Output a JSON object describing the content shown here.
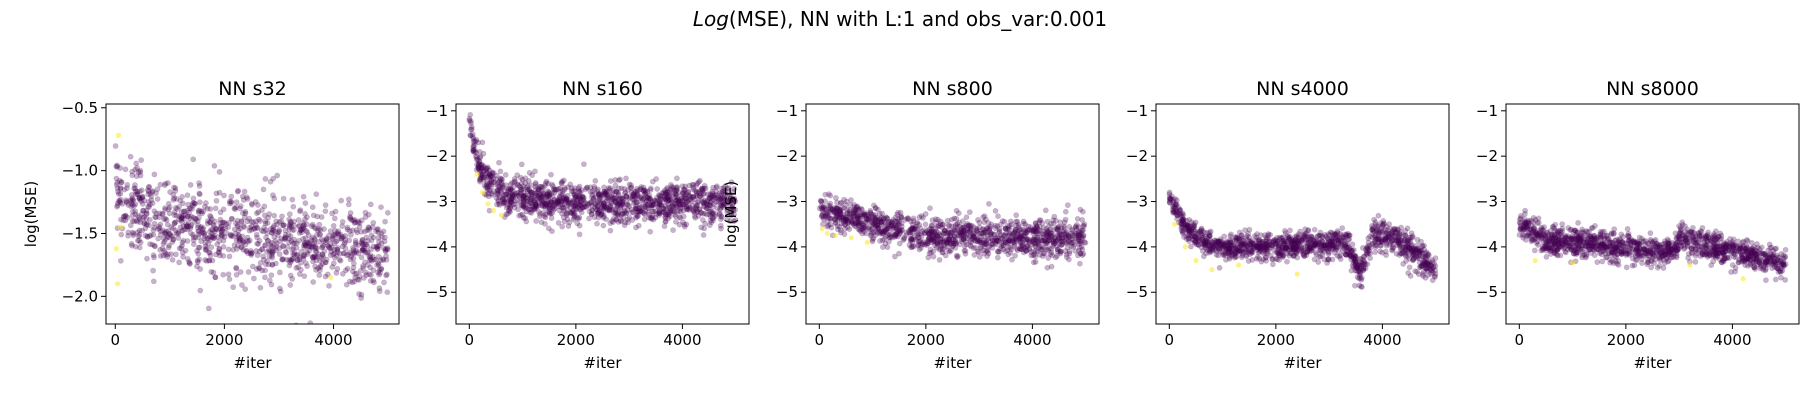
{
  "figure": {
    "title_prefix": "Log",
    "title_math": "(MSE)",
    "title_rest": ", NN with L:1 and obs_var:0.001"
  },
  "colors": {
    "point_main": "#440154",
    "point_highlight": "#fde725",
    "axes": "#000000",
    "background": "#ffffff"
  },
  "chart_data": [
    {
      "type": "scatter",
      "title": "NN s32",
      "xlabel": "#iter",
      "ylabel": "log(MSE)",
      "xlim": [
        -170,
        5200
      ],
      "ylim": [
        -2.22,
        -0.47
      ],
      "xticks": [
        0,
        2000,
        4000
      ],
      "xtick_labels": [
        "0",
        "2000",
        "4000"
      ],
      "yticks": [
        -2.0,
        -1.5,
        -1.0,
        -0.5
      ],
      "ytick_labels": [
        "−2.0",
        "−1.5",
        "−1.0",
        "−0.5"
      ],
      "series": [
        {
          "color": "#440154",
          "alpha": 0.3,
          "trend": [
            {
              "x": 0,
              "y": -1.1
            },
            {
              "x": 150,
              "y": -1.3
            },
            {
              "x": 1000,
              "y": -1.4
            },
            {
              "x": 3000,
              "y": -1.55
            },
            {
              "x": 5000,
              "y": -1.65
            }
          ],
          "spread": [
            {
              "x": 0,
              "y": 0.35
            },
            {
              "x": 5000,
              "y": 0.3
            }
          ],
          "count": 1100
        },
        {
          "color": "#fde725",
          "alpha": 0.55,
          "points": [
            {
              "x": 20,
              "y": -1.62
            },
            {
              "x": 40,
              "y": -1.9
            },
            {
              "x": 60,
              "y": -0.72
            },
            {
              "x": 100,
              "y": -1.45
            },
            {
              "x": 3950,
              "y": -1.85
            }
          ]
        }
      ]
    },
    {
      "type": "scatter",
      "title": "NN s160",
      "xlabel": "#iter",
      "ylabel": "",
      "xlim": [
        -250,
        5250
      ],
      "ylim": [
        -5.7,
        -0.85
      ],
      "xticks": [
        0,
        2000,
        4000
      ],
      "xtick_labels": [
        "0",
        "2000",
        "4000"
      ],
      "yticks": [
        -5,
        -4,
        -3,
        -2,
        -1
      ],
      "ytick_labels": [
        "−5",
        "−4",
        "−3",
        "−2",
        "−1"
      ],
      "series": [
        {
          "color": "#440154",
          "alpha": 0.3,
          "trend": [
            {
              "x": 0,
              "y": -1.2
            },
            {
              "x": 100,
              "y": -1.9
            },
            {
              "x": 300,
              "y": -2.5
            },
            {
              "x": 700,
              "y": -2.85
            },
            {
              "x": 1500,
              "y": -3.0
            },
            {
              "x": 3000,
              "y": -3.05
            },
            {
              "x": 5000,
              "y": -3.0
            }
          ],
          "spread": [
            {
              "x": 0,
              "y": 0.25
            },
            {
              "x": 400,
              "y": 0.45
            },
            {
              "x": 5000,
              "y": 0.45
            }
          ],
          "count": 1300
        },
        {
          "color": "#fde725",
          "alpha": 0.55,
          "points": [
            {
              "x": 150,
              "y": -2.4
            },
            {
              "x": 250,
              "y": -2.8
            },
            {
              "x": 350,
              "y": -3.05
            },
            {
              "x": 450,
              "y": -3.2
            },
            {
              "x": 600,
              "y": -3.3
            }
          ]
        }
      ]
    },
    {
      "type": "scatter",
      "title": "NN s800",
      "xlabel": "#iter",
      "ylabel": "log(MSE)",
      "xlim": [
        -250,
        5250
      ],
      "ylim": [
        -5.7,
        -0.85
      ],
      "xticks": [
        0,
        2000,
        4000
      ],
      "xtick_labels": [
        "0",
        "2000",
        "4000"
      ],
      "yticks": [
        -5,
        -4,
        -3,
        -2,
        -1
      ],
      "ytick_labels": [
        "−5",
        "−4",
        "−3",
        "−2",
        "−1"
      ],
      "series": [
        {
          "color": "#440154",
          "alpha": 0.3,
          "trend": [
            {
              "x": 0,
              "y": -3.2
            },
            {
              "x": 1000,
              "y": -3.5
            },
            {
              "x": 2000,
              "y": -3.75
            },
            {
              "x": 3000,
              "y": -3.8
            },
            {
              "x": 5000,
              "y": -3.8
            }
          ],
          "spread": [
            {
              "x": 0,
              "y": 0.35
            },
            {
              "x": 5000,
              "y": 0.45
            }
          ],
          "count": 1200
        },
        {
          "color": "#fde725",
          "alpha": 0.55,
          "points": [
            {
              "x": 50,
              "y": -3.6
            },
            {
              "x": 150,
              "y": -3.7
            },
            {
              "x": 300,
              "y": -3.75
            },
            {
              "x": 600,
              "y": -3.8
            },
            {
              "x": 900,
              "y": -3.9
            }
          ]
        }
      ]
    },
    {
      "type": "scatter",
      "title": "NN s4000",
      "xlabel": "#iter",
      "ylabel": "",
      "xlim": [
        -250,
        5250
      ],
      "ylim": [
        -5.7,
        -0.85
      ],
      "xticks": [
        0,
        2000,
        4000
      ],
      "xtick_labels": [
        "0",
        "2000",
        "4000"
      ],
      "yticks": [
        -5,
        -4,
        -3,
        -2,
        -1
      ],
      "ytick_labels": [
        "−5",
        "−4",
        "−3",
        "−2",
        "−1"
      ],
      "series": [
        {
          "color": "#440154",
          "alpha": 0.3,
          "trend": [
            {
              "x": 0,
              "y": -2.9
            },
            {
              "x": 300,
              "y": -3.6
            },
            {
              "x": 800,
              "y": -4.0
            },
            {
              "x": 2000,
              "y": -4.0
            },
            {
              "x": 3300,
              "y": -3.9
            },
            {
              "x": 3600,
              "y": -4.6
            },
            {
              "x": 3800,
              "y": -3.8
            },
            {
              "x": 4200,
              "y": -3.8
            },
            {
              "x": 5000,
              "y": -4.5
            }
          ],
          "spread": [
            {
              "x": 0,
              "y": 0.25
            },
            {
              "x": 5000,
              "y": 0.35
            }
          ],
          "count": 1300
        },
        {
          "color": "#fde725",
          "alpha": 0.55,
          "points": [
            {
              "x": 100,
              "y": -3.5
            },
            {
              "x": 300,
              "y": -4.0
            },
            {
              "x": 500,
              "y": -4.3
            },
            {
              "x": 800,
              "y": -4.5
            },
            {
              "x": 1300,
              "y": -4.4
            },
            {
              "x": 2400,
              "y": -4.6
            }
          ]
        }
      ]
    },
    {
      "type": "scatter",
      "title": "NN s8000",
      "xlabel": "#iter",
      "ylabel": "",
      "xlim": [
        -250,
        5250
      ],
      "ylim": [
        -5.7,
        -0.85
      ],
      "xticks": [
        0,
        2000,
        4000
      ],
      "xtick_labels": [
        "0",
        "2000",
        "4000"
      ],
      "yticks": [
        -5,
        -4,
        -3,
        -2,
        -1
      ],
      "ytick_labels": [
        "−5",
        "−4",
        "−3",
        "−2",
        "−1"
      ],
      "series": [
        {
          "color": "#440154",
          "alpha": 0.3,
          "trend": [
            {
              "x": 0,
              "y": -3.5
            },
            {
              "x": 500,
              "y": -3.85
            },
            {
              "x": 2900,
              "y": -4.1
            },
            {
              "x": 3000,
              "y": -3.8
            },
            {
              "x": 4000,
              "y": -4.1
            },
            {
              "x": 5000,
              "y": -4.4
            }
          ],
          "spread": [
            {
              "x": 0,
              "y": 0.3
            },
            {
              "x": 5000,
              "y": 0.3
            }
          ],
          "count": 1300
        },
        {
          "color": "#fde725",
          "alpha": 0.55,
          "points": [
            {
              "x": 300,
              "y": -4.3
            },
            {
              "x": 1000,
              "y": -4.35
            },
            {
              "x": 3200,
              "y": -4.4
            },
            {
              "x": 4200,
              "y": -4.7
            }
          ]
        }
      ]
    }
  ]
}
